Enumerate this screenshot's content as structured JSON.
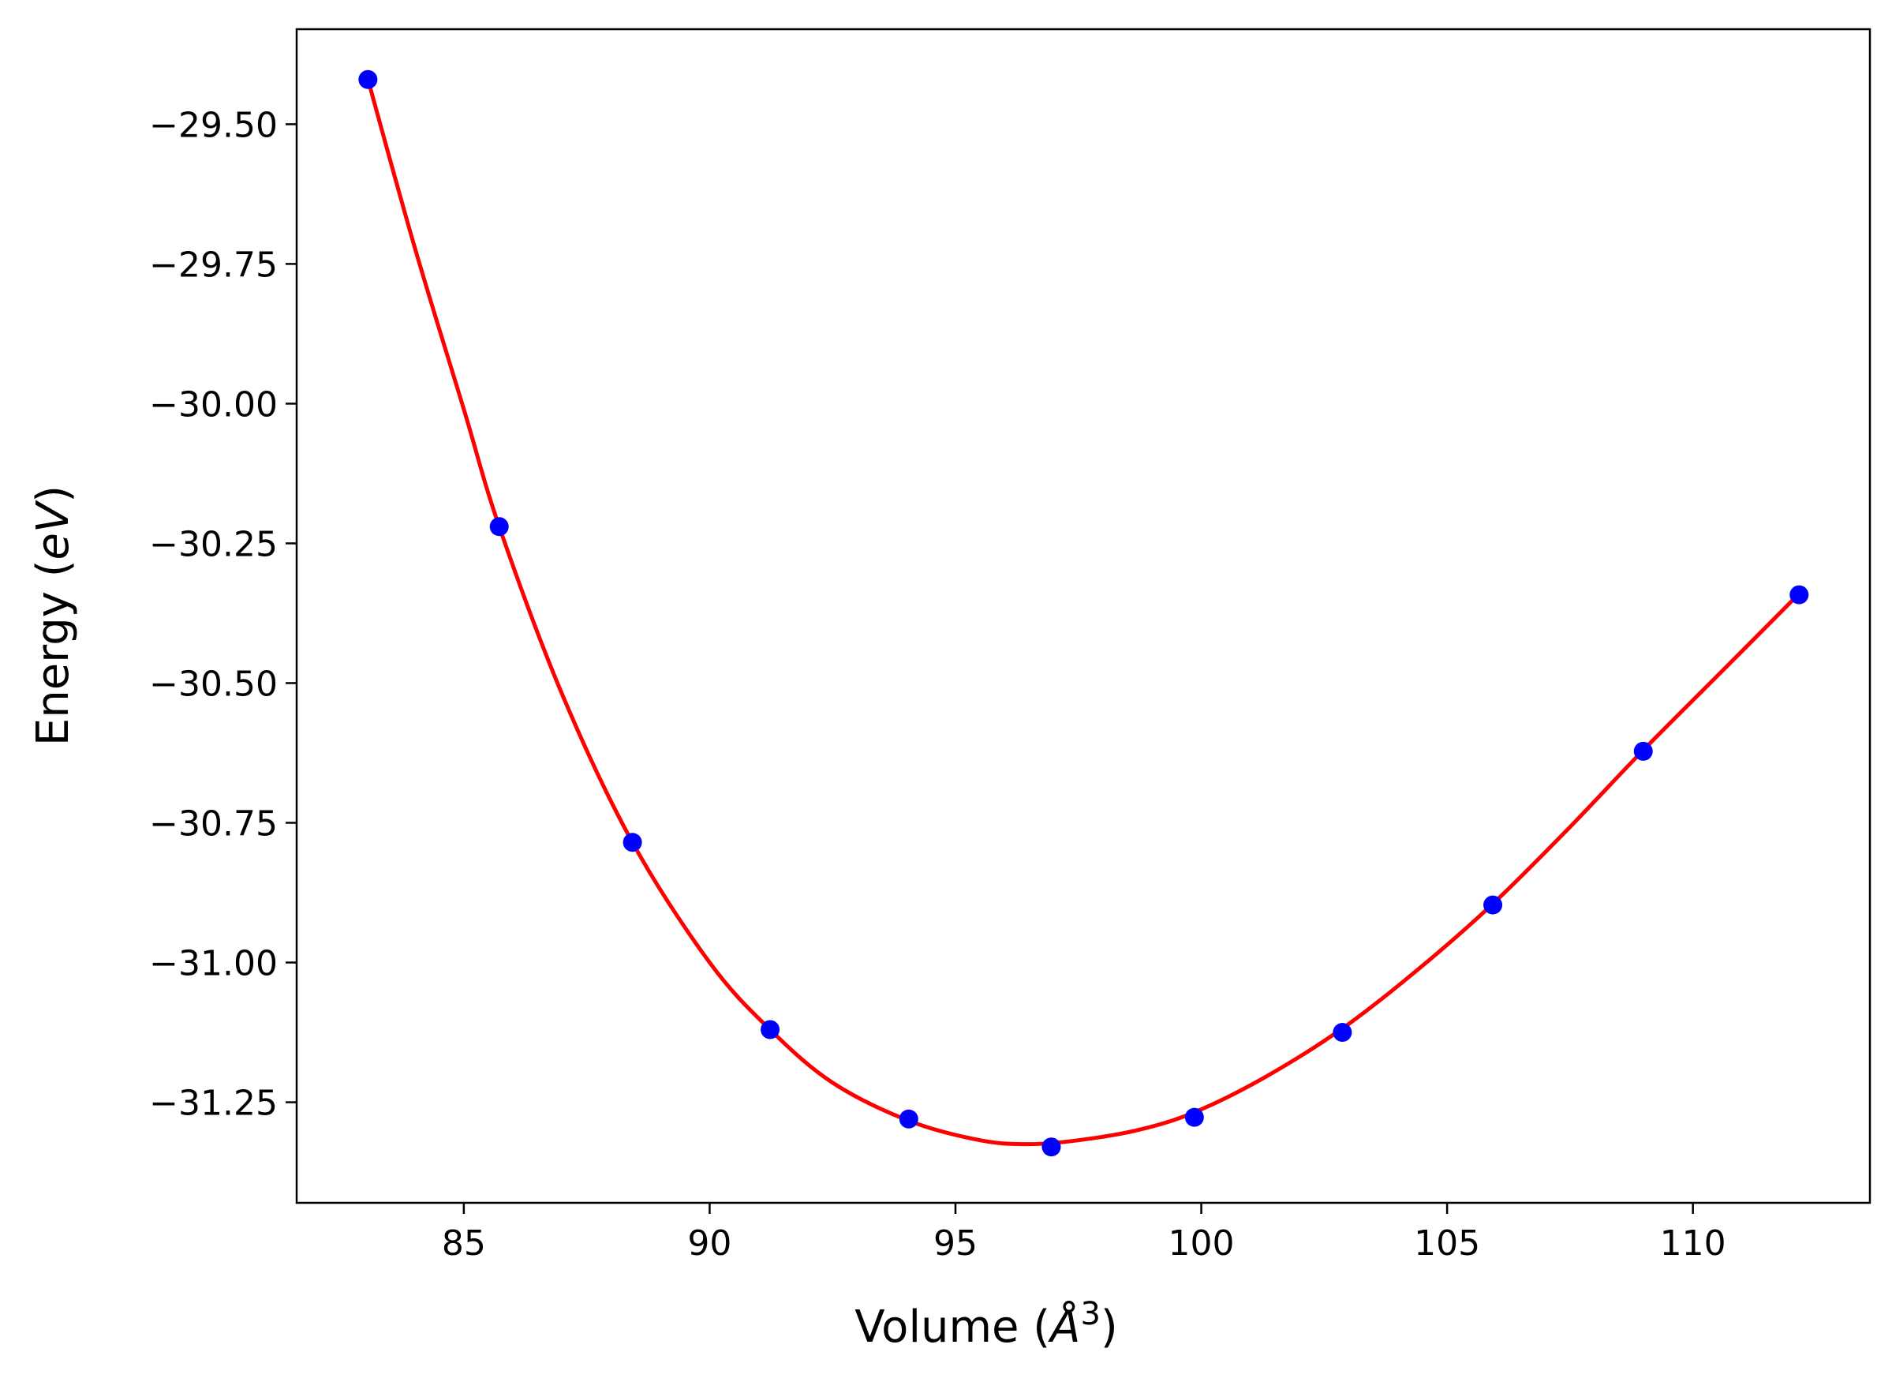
{
  "chart_data": {
    "type": "scatter",
    "title": "",
    "xlabel": "Volume",
    "ylabel": "Energy",
    "xlabel_unit": "Å",
    "xlabel_unit_exponent": "3",
    "ylabel_unit": "eV",
    "xlim": [
      81.6,
      113.6
    ],
    "ylim": [
      -31.43,
      -29.33
    ],
    "x_ticks": [
      85,
      90,
      95,
      100,
      105,
      110
    ],
    "x_tick_labels": [
      "85",
      "90",
      "95",
      "100",
      "105",
      "110"
    ],
    "y_ticks": [
      -29.5,
      -29.75,
      -30.0,
      -30.25,
      -30.5,
      -30.75,
      -31.0,
      -31.25
    ],
    "y_tick_labels": [
      "−29.50",
      "−29.75",
      "−30.00",
      "−30.25",
      "−30.50",
      "−30.75",
      "−31.00",
      "−31.25"
    ],
    "grid": false,
    "series": [
      {
        "kind": "scatter",
        "color": "#0000ff",
        "x": [
          83.05,
          85.72,
          88.43,
          91.23,
          94.05,
          96.95,
          99.86,
          102.87,
          105.93,
          108.99,
          112.16
        ],
        "y": [
          -29.42,
          -30.22,
          -30.785,
          -31.12,
          -31.28,
          -31.33,
          -31.277,
          -31.125,
          -30.897,
          -30.622,
          -30.342
        ]
      },
      {
        "kind": "line",
        "color": "#ff0000",
        "x": [
          83.05,
          84.0,
          85.0,
          85.72,
          87.0,
          88.43,
          90.0,
          91.23,
          92.5,
          94.05,
          95.5,
          96.5,
          97.5,
          98.7,
          99.86,
          101.3,
          102.87,
          104.4,
          105.93,
          107.45,
          108.99,
          110.6,
          112.16
        ],
        "y": [
          -29.42,
          -29.72,
          -30.01,
          -30.22,
          -30.52,
          -30.785,
          -31.0,
          -31.12,
          -31.215,
          -31.283,
          -31.318,
          -31.325,
          -31.318,
          -31.3,
          -31.268,
          -31.205,
          -31.118,
          -31.013,
          -30.895,
          -30.762,
          -30.62,
          -30.478,
          -30.34
        ]
      }
    ]
  }
}
